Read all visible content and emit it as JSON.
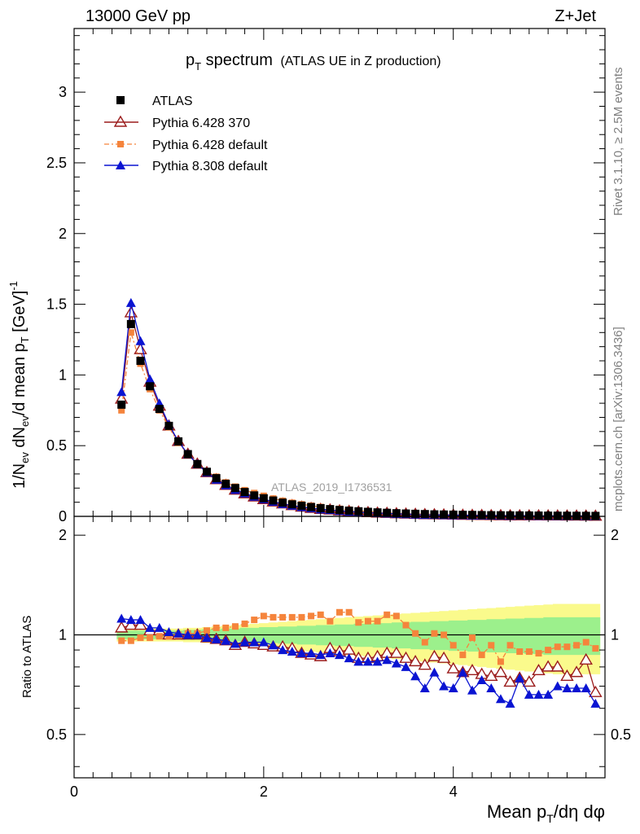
{
  "header": {
    "energy": "13000 GeV pp",
    "process": "Z+Jet"
  },
  "title": {
    "main": "p",
    "sub": "T",
    "rest": " spectrum",
    "note": "(ATLAS UE in Z production)"
  },
  "side_labels": {
    "rivet": "Rivet 3.1.10, ≥ 2.5M events",
    "mcplots": "mcplots.cern.ch [arXiv:1306.3436]"
  },
  "watermark": "ATLAS_2019_I1736531",
  "axes": {
    "ylabel_top": "1/N_ev dN_ev/d mean p_T [GeV]^-1",
    "ylabel_bottom": "Ratio to ATLAS",
    "xlabel": "Mean p_T/dη dφ"
  },
  "colors": {
    "atlas": "#000000",
    "py6_370": "#9b1c1c",
    "py6_default": "#f5843c",
    "py8": "#0a14d2",
    "band_inner": "#9cf08c",
    "band_outer": "#fafa8c"
  },
  "chart_data": [
    {
      "type": "line",
      "panel": "main",
      "title": "p_T spectrum (ATLAS UE in Z production)",
      "xlabel": "Mean p_T/dη dφ",
      "ylabel": "1/N_ev dN_ev/d mean p_T [GeV]^-1",
      "xlim": [
        0,
        5.6
      ],
      "ylim": [
        0,
        3.45
      ],
      "y_ticks": [
        "0",
        "0.5",
        "1",
        "1.5",
        "2",
        "2.5",
        "3"
      ],
      "legend_position": "top-left",
      "x": [
        0.5,
        0.6,
        0.7,
        0.8,
        0.9,
        1.0,
        1.1,
        1.2,
        1.3,
        1.4,
        1.5,
        1.6,
        1.7,
        1.8,
        1.9,
        2.0,
        2.1,
        2.2,
        2.3,
        2.4,
        2.5,
        2.6,
        2.7,
        2.8,
        2.9,
        3.0,
        3.1,
        3.2,
        3.3,
        3.4,
        3.5,
        3.6,
        3.7,
        3.8,
        3.9,
        4.0,
        4.1,
        4.2,
        4.3,
        4.4,
        4.5,
        4.6,
        4.7,
        4.8,
        4.9,
        5.0,
        5.1,
        5.2,
        5.3,
        5.4,
        5.5
      ],
      "series": [
        {
          "name": "ATLAS",
          "values": [
            0.79,
            1.36,
            1.1,
            0.92,
            0.76,
            0.64,
            0.53,
            0.44,
            0.37,
            0.315,
            0.27,
            0.23,
            0.2,
            0.172,
            0.148,
            0.128,
            0.112,
            0.097,
            0.085,
            0.075,
            0.066,
            0.058,
            0.051,
            0.045,
            0.04,
            0.036,
            0.032,
            0.028,
            0.025,
            0.022,
            0.02,
            0.018,
            0.016,
            0.014,
            0.013,
            0.012,
            0.011,
            0.01,
            0.009,
            0.008,
            0.0075,
            0.007,
            0.0065,
            0.006,
            0.0055,
            0.005,
            0.0046,
            0.0042,
            0.0038,
            0.0035,
            0.0032
          ]
        },
        {
          "name": "Pythia 6.428 370",
          "values": [
            0.83,
            1.44,
            1.18,
            0.95,
            0.78,
            0.64,
            0.53,
            0.44,
            0.37,
            0.31,
            0.26,
            0.22,
            0.186,
            0.16,
            0.138,
            0.119,
            0.103,
            0.089,
            0.077,
            0.066,
            0.057,
            0.05,
            0.046,
            0.04,
            0.036,
            0.031,
            0.027,
            0.024,
            0.022,
            0.019,
            0.017,
            0.015,
            0.013,
            0.012,
            0.011,
            0.0095,
            0.0085,
            0.0078,
            0.007,
            0.006,
            0.0058,
            0.005,
            0.0048,
            0.0044,
            0.0045,
            0.004,
            0.0037,
            0.0032,
            0.003,
            0.0029,
            0.0022
          ]
        },
        {
          "name": "Pythia 6.428 default",
          "values": [
            0.75,
            1.3,
            1.08,
            0.9,
            0.75,
            0.63,
            0.52,
            0.44,
            0.37,
            0.32,
            0.28,
            0.24,
            0.21,
            0.185,
            0.165,
            0.145,
            0.126,
            0.11,
            0.096,
            0.085,
            0.075,
            0.066,
            0.056,
            0.053,
            0.047,
            0.039,
            0.035,
            0.031,
            0.029,
            0.025,
            0.021,
            0.018,
            0.015,
            0.014,
            0.013,
            0.011,
            0.0095,
            0.0097,
            0.0078,
            0.0074,
            0.0062,
            0.0065,
            0.0058,
            0.0053,
            0.0048,
            0.0045,
            0.0042,
            0.0038,
            0.0035,
            0.0033,
            0.0029
          ]
        },
        {
          "name": "Pythia 8.308 default",
          "values": [
            0.88,
            1.51,
            1.24,
            0.97,
            0.8,
            0.65,
            0.53,
            0.44,
            0.37,
            0.31,
            0.26,
            0.22,
            0.188,
            0.163,
            0.14,
            0.121,
            0.104,
            0.088,
            0.076,
            0.066,
            0.058,
            0.05,
            0.045,
            0.039,
            0.034,
            0.03,
            0.026,
            0.023,
            0.021,
            0.018,
            0.016,
            0.013,
            0.011,
            0.011,
            0.009,
            0.0083,
            0.0085,
            0.0068,
            0.0066,
            0.0055,
            0.0048,
            0.0045,
            0.0048,
            0.004,
            0.0036,
            0.0034,
            0.0032,
            0.0029,
            0.0026,
            0.0025,
            0.002
          ]
        }
      ]
    },
    {
      "type": "line",
      "panel": "ratio",
      "ylabel": "Ratio to ATLAS",
      "xlabel": "Mean p_T/dη dφ",
      "xlim": [
        0,
        5.6
      ],
      "ylim": [
        0.37,
        2.28
      ],
      "y_ticks": [
        "0.5",
        "1",
        "2"
      ],
      "x_ticks": [
        "0",
        "2",
        "4"
      ],
      "reference_line": 1,
      "x": [
        0.5,
        0.6,
        0.7,
        0.8,
        0.9,
        1.0,
        1.1,
        1.2,
        1.3,
        1.4,
        1.5,
        1.6,
        1.7,
        1.8,
        1.9,
        2.0,
        2.1,
        2.2,
        2.3,
        2.4,
        2.5,
        2.6,
        2.7,
        2.8,
        2.9,
        3.0,
        3.1,
        3.2,
        3.3,
        3.4,
        3.5,
        3.6,
        3.7,
        3.8,
        3.9,
        4.0,
        4.1,
        4.2,
        4.3,
        4.4,
        4.5,
        4.6,
        4.7,
        4.8,
        4.9,
        5.0,
        5.1,
        5.2,
        5.3,
        5.4,
        5.5
      ],
      "band_inner_halfwidth": [
        0.03,
        0.03,
        0.03,
        0.03,
        0.03,
        0.03,
        0.03,
        0.035,
        0.035,
        0.04,
        0.04,
        0.045,
        0.045,
        0.05,
        0.05,
        0.055,
        0.055,
        0.06,
        0.06,
        0.065,
        0.065,
        0.07,
        0.07,
        0.075,
        0.075,
        0.08,
        0.08,
        0.085,
        0.085,
        0.09,
        0.09,
        0.095,
        0.095,
        0.1,
        0.1,
        0.105,
        0.105,
        0.11,
        0.11,
        0.115,
        0.115,
        0.12,
        0.12,
        0.125,
        0.125,
        0.13,
        0.13,
        0.13,
        0.13,
        0.13,
        0.13
      ],
      "band_outer_halfwidth": [
        0.045,
        0.045,
        0.045,
        0.045,
        0.045,
        0.045,
        0.045,
        0.05,
        0.05,
        0.055,
        0.06,
        0.065,
        0.07,
        0.075,
        0.08,
        0.085,
        0.09,
        0.095,
        0.1,
        0.105,
        0.11,
        0.115,
        0.12,
        0.125,
        0.13,
        0.135,
        0.14,
        0.145,
        0.15,
        0.155,
        0.16,
        0.165,
        0.17,
        0.175,
        0.18,
        0.185,
        0.19,
        0.195,
        0.2,
        0.205,
        0.21,
        0.215,
        0.22,
        0.225,
        0.23,
        0.235,
        0.24,
        0.24,
        0.24,
        0.24,
        0.24
      ],
      "series": [
        {
          "name": "Pythia 6.428 370",
          "values": [
            1.05,
            1.07,
            1.07,
            1.03,
            1.03,
            1.0,
            1.0,
            1.0,
            1.0,
            0.98,
            0.97,
            0.96,
            0.93,
            0.95,
            0.94,
            0.93,
            0.92,
            0.92,
            0.91,
            0.88,
            0.87,
            0.86,
            0.91,
            0.89,
            0.9,
            0.85,
            0.85,
            0.86,
            0.88,
            0.88,
            0.85,
            0.83,
            0.81,
            0.86,
            0.85,
            0.79,
            0.77,
            0.78,
            0.76,
            0.75,
            0.77,
            0.72,
            0.74,
            0.72,
            0.78,
            0.8,
            0.8,
            0.75,
            0.77,
            0.84,
            0.67
          ]
        },
        {
          "name": "Pythia 6.428 default",
          "values": [
            0.96,
            0.96,
            0.98,
            0.98,
            0.99,
            0.99,
            1.0,
            1.01,
            1.01,
            1.03,
            1.05,
            1.05,
            1.06,
            1.08,
            1.11,
            1.14,
            1.13,
            1.13,
            1.13,
            1.13,
            1.14,
            1.15,
            1.1,
            1.17,
            1.17,
            1.09,
            1.1,
            1.1,
            1.15,
            1.14,
            1.07,
            1.01,
            0.95,
            1.01,
            1.0,
            0.93,
            0.87,
            0.98,
            0.87,
            0.93,
            0.83,
            0.93,
            0.89,
            0.89,
            0.88,
            0.9,
            0.92,
            0.92,
            0.93,
            0.95,
            0.91
          ]
        },
        {
          "name": "Pythia 8.308 default",
          "values": [
            1.12,
            1.11,
            1.11,
            1.05,
            1.05,
            1.02,
            1.01,
            1.0,
            1.0,
            0.98,
            0.97,
            0.96,
            0.94,
            0.95,
            0.95,
            0.95,
            0.93,
            0.9,
            0.89,
            0.88,
            0.88,
            0.87,
            0.88,
            0.87,
            0.85,
            0.83,
            0.83,
            0.83,
            0.84,
            0.82,
            0.8,
            0.75,
            0.69,
            0.77,
            0.7,
            0.69,
            0.77,
            0.68,
            0.73,
            0.69,
            0.64,
            0.62,
            0.74,
            0.66,
            0.66,
            0.66,
            0.7,
            0.69,
            0.69,
            0.69,
            0.62
          ]
        }
      ]
    }
  ]
}
